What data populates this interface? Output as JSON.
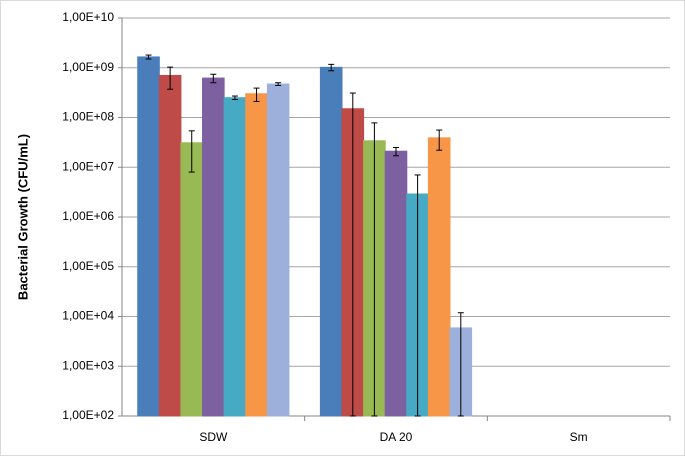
{
  "chart_data": {
    "type": "bar",
    "log_scale": true,
    "grid": true,
    "y_label": "Bacterial Growth (CFU/mL)",
    "categories": [
      "SDW",
      "DA 20",
      "Sm"
    ],
    "ylim": [
      100,
      10000000000
    ],
    "yticks": [
      {
        "value": 100,
        "label": "1,00E+02"
      },
      {
        "value": 1000,
        "label": "1,00E+03"
      },
      {
        "value": 10000,
        "label": "1,00E+04"
      },
      {
        "value": 100000,
        "label": "1,00E+05"
      },
      {
        "value": 1000000,
        "label": "1,00E+06"
      },
      {
        "value": 10000000,
        "label": "1,00E+07"
      },
      {
        "value": 100000000,
        "label": "1,00E+08"
      },
      {
        "value": 1000000000,
        "label": "1,00E+09"
      },
      {
        "value": 10000000000,
        "label": "1,00E+10"
      }
    ],
    "series": [
      {
        "color": "#4a7ebb",
        "values": [
          1650000000,
          1020000000,
          100
        ],
        "errors": [
          150000000,
          150000000,
          0
        ]
      },
      {
        "color": "#be4b48",
        "values": [
          700000000,
          150000000,
          100
        ],
        "errors": [
          330000000,
          160000000,
          0
        ]
      },
      {
        "color": "#98b954",
        "values": [
          31000000,
          34000000,
          100
        ],
        "errors": [
          23000000,
          44000000,
          0
        ]
      },
      {
        "color": "#7d60a0",
        "values": [
          620000000,
          21000000,
          100
        ],
        "errors": [
          120000000,
          4000000,
          0
        ]
      },
      {
        "color": "#46aac5",
        "values": [
          250000000,
          2900000,
          100
        ],
        "errors": [
          20000000,
          4100000,
          0
        ]
      },
      {
        "color": "#f79646",
        "values": [
          300000000,
          39000000,
          100
        ],
        "errors": [
          90000000,
          17000000,
          0
        ]
      },
      {
        "color": "#9cb0db",
        "values": [
          470000000,
          5900,
          100
        ],
        "errors": [
          30000000,
          6000,
          0
        ]
      }
    ]
  }
}
